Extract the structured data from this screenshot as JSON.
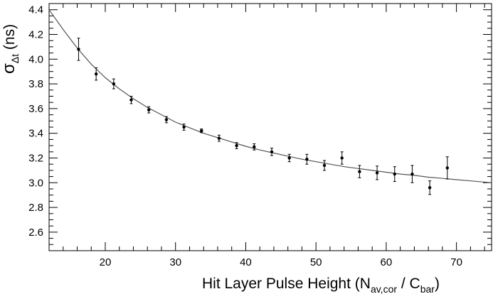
{
  "chart_data": {
    "type": "scatter",
    "xlabel": {
      "main": "Hit Layer Pulse Height (N",
      "sub1": "av,cor",
      "mid": " / C",
      "sub2": "bar",
      "end": ")"
    },
    "ylabel": {
      "main": "σ",
      "sub": "Δt",
      "unit": " (ns)"
    },
    "xlim": [
      12,
      75
    ],
    "ylim": [
      2.45,
      4.45
    ],
    "xticks_labeled": [
      20,
      30,
      40,
      50,
      60,
      70
    ],
    "yticks_labeled": [
      2.6,
      2.8,
      3.0,
      3.2,
      3.4,
      3.6,
      3.8,
      4.0,
      4.2,
      4.4
    ],
    "grid": false,
    "series": [
      {
        "type": "scatter-errorbar",
        "color": "#000000",
        "points": [
          {
            "x": 16.2,
            "y": 4.08,
            "err": 0.09
          },
          {
            "x": 18.7,
            "y": 3.88,
            "err": 0.05
          },
          {
            "x": 21.2,
            "y": 3.8,
            "err": 0.04
          },
          {
            "x": 23.7,
            "y": 3.67,
            "err": 0.03
          },
          {
            "x": 26.2,
            "y": 3.59,
            "err": 0.025
          },
          {
            "x": 28.7,
            "y": 3.51,
            "err": 0.025
          },
          {
            "x": 31.2,
            "y": 3.45,
            "err": 0.025
          },
          {
            "x": 33.7,
            "y": 3.42,
            "err": 0.015
          },
          {
            "x": 36.2,
            "y": 3.36,
            "err": 0.025
          },
          {
            "x": 38.7,
            "y": 3.3,
            "err": 0.025
          },
          {
            "x": 41.2,
            "y": 3.29,
            "err": 0.025
          },
          {
            "x": 43.7,
            "y": 3.25,
            "err": 0.03
          },
          {
            "x": 46.2,
            "y": 3.2,
            "err": 0.03
          },
          {
            "x": 48.7,
            "y": 3.19,
            "err": 0.04
          },
          {
            "x": 51.2,
            "y": 3.14,
            "err": 0.04
          },
          {
            "x": 53.7,
            "y": 3.2,
            "err": 0.05
          },
          {
            "x": 56.2,
            "y": 3.09,
            "err": 0.05
          },
          {
            "x": 58.7,
            "y": 3.08,
            "err": 0.055
          },
          {
            "x": 61.2,
            "y": 3.07,
            "err": 0.06
          },
          {
            "x": 63.7,
            "y": 3.07,
            "err": 0.07
          },
          {
            "x": 66.2,
            "y": 2.96,
            "err": 0.055
          },
          {
            "x": 68.7,
            "y": 3.12,
            "err": 0.09
          }
        ]
      },
      {
        "type": "fit-line",
        "color": "#555555",
        "x": [
          12,
          14,
          16,
          18,
          20,
          22,
          24,
          26,
          28,
          30,
          32,
          34,
          36,
          38,
          40,
          42,
          44,
          46,
          48,
          50,
          52,
          54,
          56,
          58,
          60,
          62,
          64,
          66,
          68,
          70,
          72,
          75
        ],
        "y": [
          4.4,
          4.24,
          4.09,
          3.96,
          3.85,
          3.76,
          3.68,
          3.61,
          3.55,
          3.49,
          3.445,
          3.4,
          3.365,
          3.33,
          3.295,
          3.265,
          3.24,
          3.215,
          3.19,
          3.17,
          3.15,
          3.13,
          3.115,
          3.1,
          3.085,
          3.07,
          3.06,
          3.045,
          3.035,
          3.025,
          3.015,
          3.0
        ]
      }
    ]
  }
}
